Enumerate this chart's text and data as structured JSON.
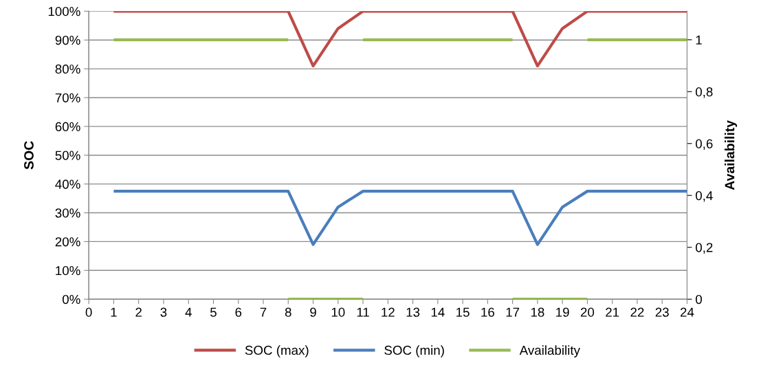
{
  "chart_data": {
    "type": "line",
    "ylabel": "SOC",
    "y2label": "Availability",
    "x": [
      1,
      2,
      3,
      4,
      5,
      6,
      7,
      8,
      9,
      10,
      11,
      12,
      13,
      14,
      15,
      16,
      17,
      18,
      19,
      20,
      21,
      22,
      23,
      24
    ],
    "series": [
      {
        "name": "SOC (max)",
        "color": "#be4b48",
        "values": [
          100,
          100,
          100,
          100,
          100,
          100,
          100,
          100,
          81,
          94,
          100,
          100,
          100,
          100,
          100,
          100,
          100,
          81,
          94,
          100,
          100,
          100,
          100,
          100
        ]
      },
      {
        "name": "SOC (min)",
        "color": "#4a7ebb",
        "values": [
          37.5,
          37.5,
          37.5,
          37.5,
          37.5,
          37.5,
          37.5,
          37.5,
          19,
          32,
          37.5,
          37.5,
          37.5,
          37.5,
          37.5,
          37.5,
          37.5,
          19,
          32,
          37.5,
          37.5,
          37.5,
          37.5,
          37.5
        ]
      },
      {
        "name": "Availability",
        "color": "#98b954",
        "axis": "y2",
        "x": [
          1,
          2,
          3,
          4,
          5,
          6,
          7,
          8
        ],
        "values": [
          1,
          1,
          1,
          1,
          1,
          1,
          1,
          1
        ]
      },
      {
        "color": "#98b954",
        "axis": "y2",
        "x": [
          8,
          9,
          10,
          11
        ],
        "values": [
          0,
          0,
          0,
          0
        ]
      },
      {
        "color": "#98b954",
        "axis": "y2",
        "x": [
          11,
          12,
          13,
          14,
          15,
          16,
          17
        ],
        "values": [
          1,
          1,
          1,
          1,
          1,
          1,
          1
        ]
      },
      {
        "color": "#98b954",
        "axis": "y2",
        "x": [
          17,
          18,
          19,
          20
        ],
        "values": [
          0,
          0,
          0,
          0
        ]
      },
      {
        "color": "#98b954",
        "axis": "y2",
        "x": [
          20,
          21,
          22,
          23,
          24
        ],
        "values": [
          1,
          1,
          1,
          1,
          1
        ]
      }
    ],
    "xlim": [
      0,
      24
    ],
    "xticks": [
      0,
      1,
      2,
      3,
      4,
      5,
      6,
      7,
      8,
      9,
      10,
      11,
      12,
      13,
      14,
      15,
      16,
      17,
      18,
      19,
      20,
      21,
      22,
      23,
      24
    ],
    "ylim": [
      0,
      100
    ],
    "yticks": [
      {
        "value": 0,
        "label": "0%"
      },
      {
        "value": 10,
        "label": "10%"
      },
      {
        "value": 20,
        "label": "20%"
      },
      {
        "value": 30,
        "label": "30%"
      },
      {
        "value": 40,
        "label": "40%"
      },
      {
        "value": 50,
        "label": "50%"
      },
      {
        "value": 60,
        "label": "60%"
      },
      {
        "value": 70,
        "label": "70%"
      },
      {
        "value": 80,
        "label": "80%"
      },
      {
        "value": 90,
        "label": "90%"
      },
      {
        "value": 100,
        "label": "100%"
      }
    ],
    "y2lim": [
      0,
      1.11
    ],
    "y2ticks": [
      0,
      {
        "value": 0.2,
        "label": "0,2"
      },
      {
        "value": 0.4,
        "label": "0,4"
      },
      {
        "value": 0.6,
        "label": "0,6"
      },
      {
        "value": 0.8,
        "label": "0,8"
      },
      1
    ],
    "grid": "y",
    "legend": "bottom",
    "marker": "none",
    "line_style": "solid"
  }
}
